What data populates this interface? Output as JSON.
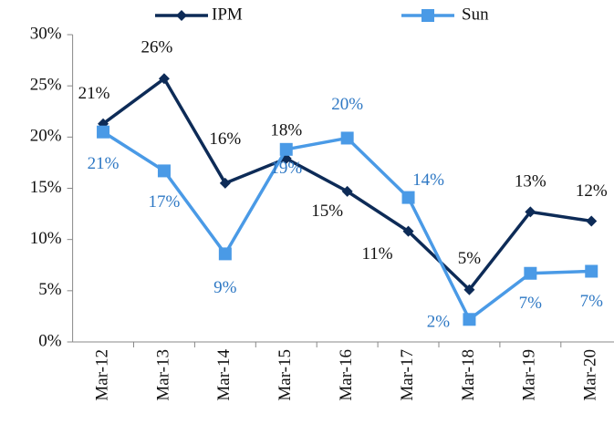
{
  "chart_data": {
    "type": "line",
    "categories": [
      "Mar-12",
      "Mar-13",
      "Mar-14",
      "Mar-15",
      "Mar-16",
      "Mar-17",
      "Mar-18",
      "Mar-19",
      "Mar-20"
    ],
    "series": [
      {
        "name": "IPM",
        "color": "#0d2b57",
        "marker": "diamond",
        "values": [
          21.3,
          25.7,
          15.5,
          17.9,
          14.7,
          10.8,
          5.1,
          12.7,
          11.8
        ],
        "value_labels": [
          "21%",
          "26%",
          "16%",
          "18%",
          "15%",
          "11%",
          "5%",
          "13%",
          "12%"
        ]
      },
      {
        "name": "Sun",
        "color": "#4a9ae6",
        "label_color": "#2e78c4",
        "marker": "square",
        "values": [
          20.5,
          16.7,
          8.6,
          18.8,
          19.9,
          14.1,
          2.2,
          6.7,
          6.9
        ],
        "value_labels": [
          "21%",
          "17%",
          "9%",
          "19%",
          "20%",
          "14%",
          "2%",
          "7%",
          "7%"
        ]
      }
    ],
    "ylim": [
      0,
      30
    ],
    "yticks": [
      {
        "value": 0,
        "label": "0%"
      },
      {
        "value": 5,
        "label": "5%"
      },
      {
        "value": 10,
        "label": "10%"
      },
      {
        "value": 15,
        "label": "15%"
      },
      {
        "value": 20,
        "label": "20%"
      },
      {
        "value": 25,
        "label": "25%"
      },
      {
        "value": 30,
        "label": "30%"
      }
    ],
    "grid": false,
    "legend": "top"
  }
}
